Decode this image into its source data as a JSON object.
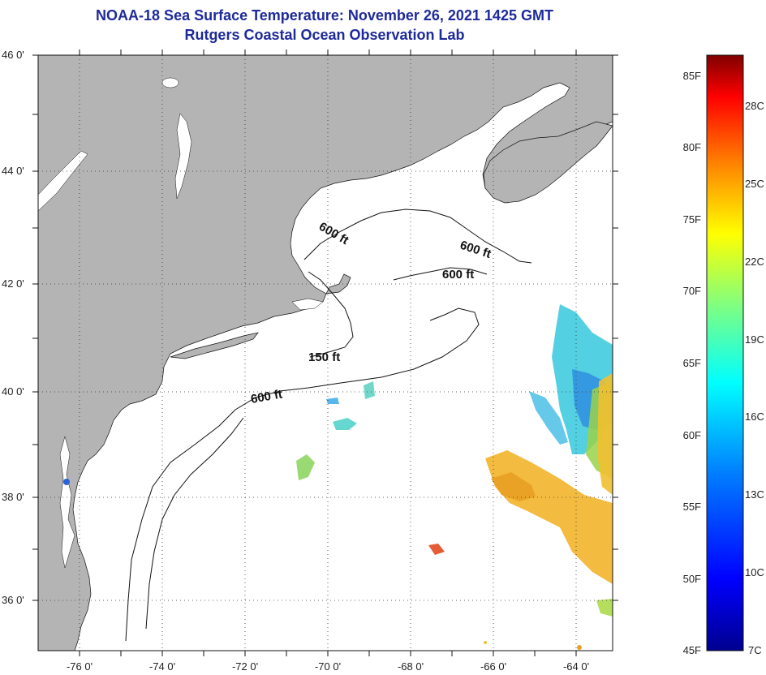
{
  "title": {
    "line1": "NOAA-18 Sea Surface Temperature:  November 26, 2021 1425 GMT",
    "line2": "Rutgers Coastal Ocean Observation Lab"
  },
  "axes": {
    "lat_labels": [
      "46 0'",
      "44 0'",
      "42 0'",
      "40 0'",
      "38 0'",
      "36 0'"
    ],
    "lon_labels": [
      "-76 0'",
      "-74 0'",
      "-72 0'",
      "-70 0'",
      "-68 0'",
      "-66 0'",
      "-64 0'"
    ]
  },
  "contours": {
    "labels": [
      "600 ft",
      "600 ft",
      "600 ft",
      "150 ft",
      "600 ft"
    ]
  },
  "colorbar": {
    "fahrenheit": [
      "85F",
      "80F",
      "75F",
      "70F",
      "65F",
      "60F",
      "55F",
      "50F",
      "45F"
    ],
    "celsius": [
      "28C",
      "25C",
      "22C",
      "19C",
      "16C",
      "13C",
      "10C",
      "7C"
    ]
  },
  "colors": {
    "land": "#b4b4b4",
    "ocean": "#ffffff",
    "title": "#1e2a9a"
  }
}
